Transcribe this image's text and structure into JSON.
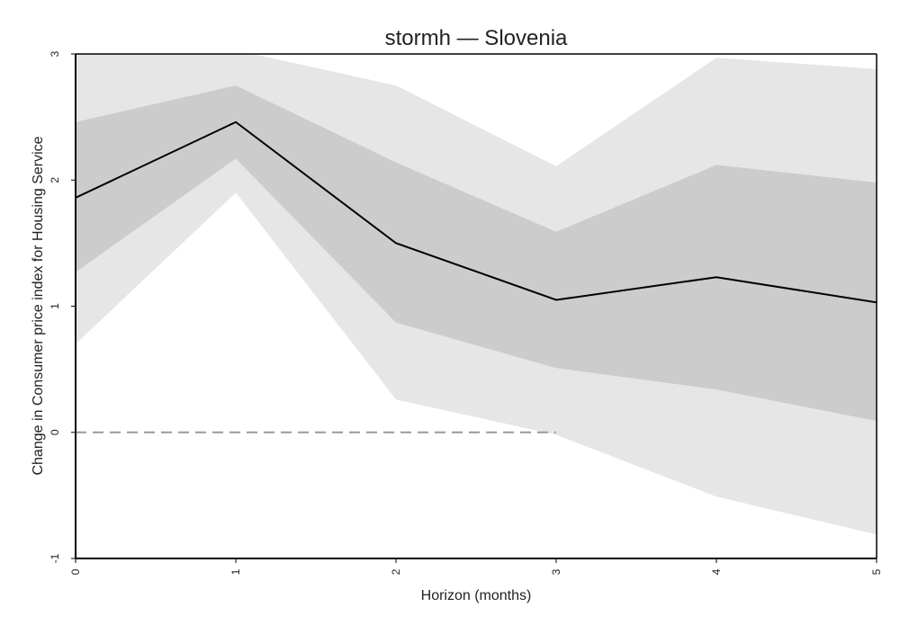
{
  "chart_data": {
    "type": "line",
    "title": "stormh — Slovenia",
    "xlabel": "Horizon (months)",
    "ylabel": "Change in Consumer price index for Housing Service",
    "x": [
      0,
      1,
      2,
      3,
      4,
      5
    ],
    "xlim": [
      0,
      5
    ],
    "ylim": [
      -1,
      3
    ],
    "xticks": [
      "0",
      "1",
      "2",
      "3",
      "4",
      "5"
    ],
    "yticks": [
      "-1",
      "0",
      "1",
      "2",
      "3"
    ],
    "series": [
      {
        "values": [
          1.86,
          2.46,
          1.5,
          1.05,
          1.23,
          1.03
        ]
      }
    ],
    "bands": [
      {
        "level": "outer",
        "lower": [
          0.7,
          1.9,
          0.26,
          -0.02,
          -0.51,
          -0.81
        ],
        "upper": [
          3.08,
          3.03,
          2.75,
          2.11,
          2.97,
          2.88
        ]
      },
      {
        "level": "inner",
        "lower": [
          1.27,
          2.17,
          0.87,
          0.51,
          0.34,
          0.09
        ],
        "upper": [
          2.46,
          2.75,
          2.14,
          1.59,
          2.12,
          1.98
        ]
      }
    ],
    "reference_line": {
      "y": 0,
      "x_end": 3,
      "style": "dashed"
    },
    "grid": false,
    "colors": {
      "outer_band": "#e6e6e6",
      "inner_band": "#cccccc",
      "line": "#000000",
      "reference": "#999999",
      "axes": "#000000"
    }
  }
}
